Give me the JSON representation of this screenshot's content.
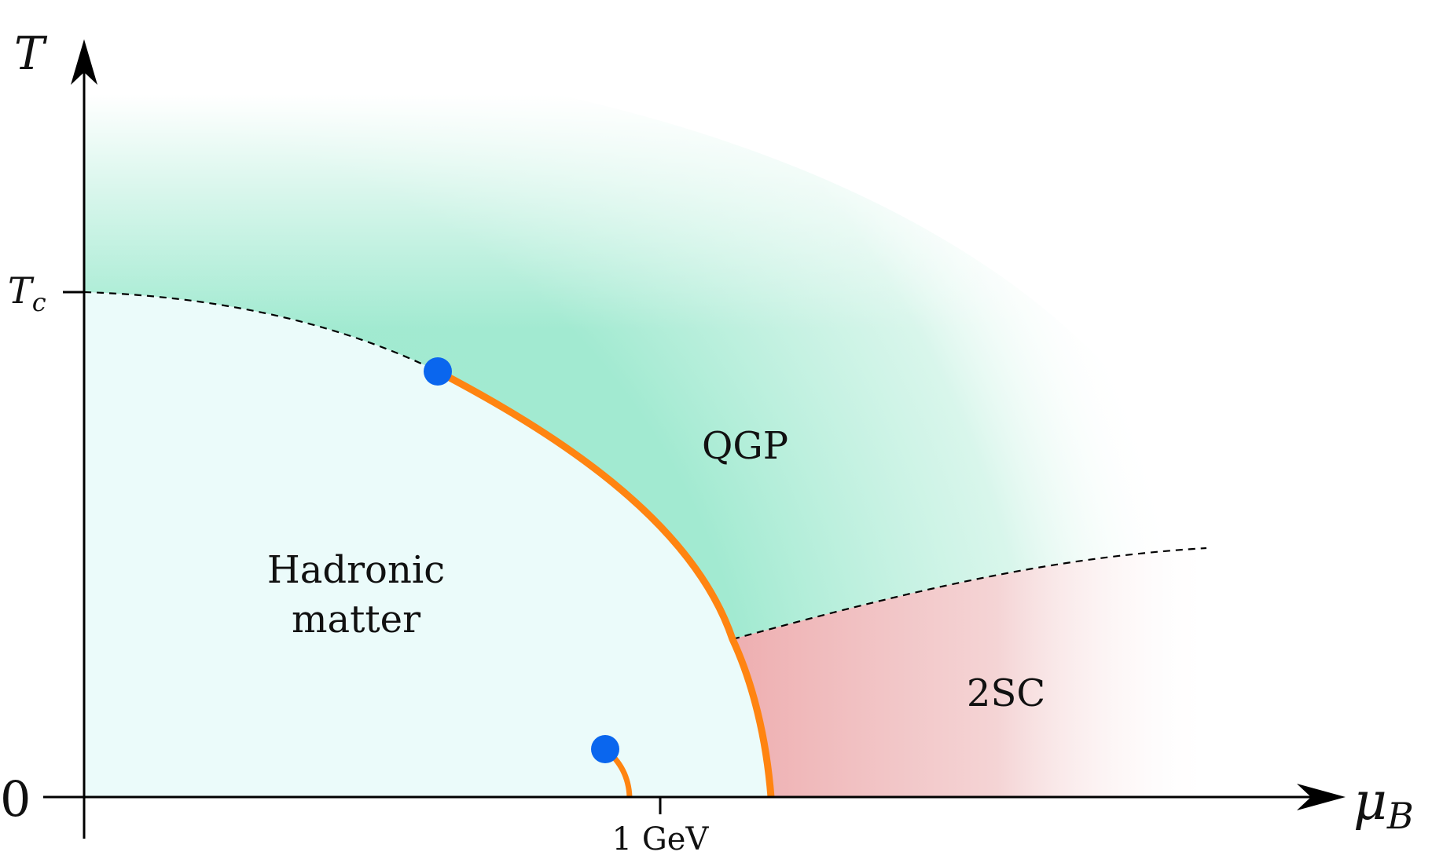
{
  "axes": {
    "y_label": "T",
    "x_label_symbol": "μ",
    "x_label_sub": "B",
    "y_tick_tc_main": "T",
    "y_tick_tc_sub": "c",
    "origin_label": "0",
    "x_tick_label": "1 GeV"
  },
  "regions": {
    "qgp": "QGP",
    "hadronic_line1": "Hadronic",
    "hadronic_line2": "matter",
    "two_sc": "2SC"
  },
  "colors": {
    "hadronic_fill": "#ebfbfa",
    "qgp_fill": "#9feacf",
    "two_sc_fill": "#eeaeb0",
    "first_order_line": "#ff8411",
    "critical_point": "#0a66ee",
    "axis": "#000000",
    "crossover_line": "#000000"
  }
}
